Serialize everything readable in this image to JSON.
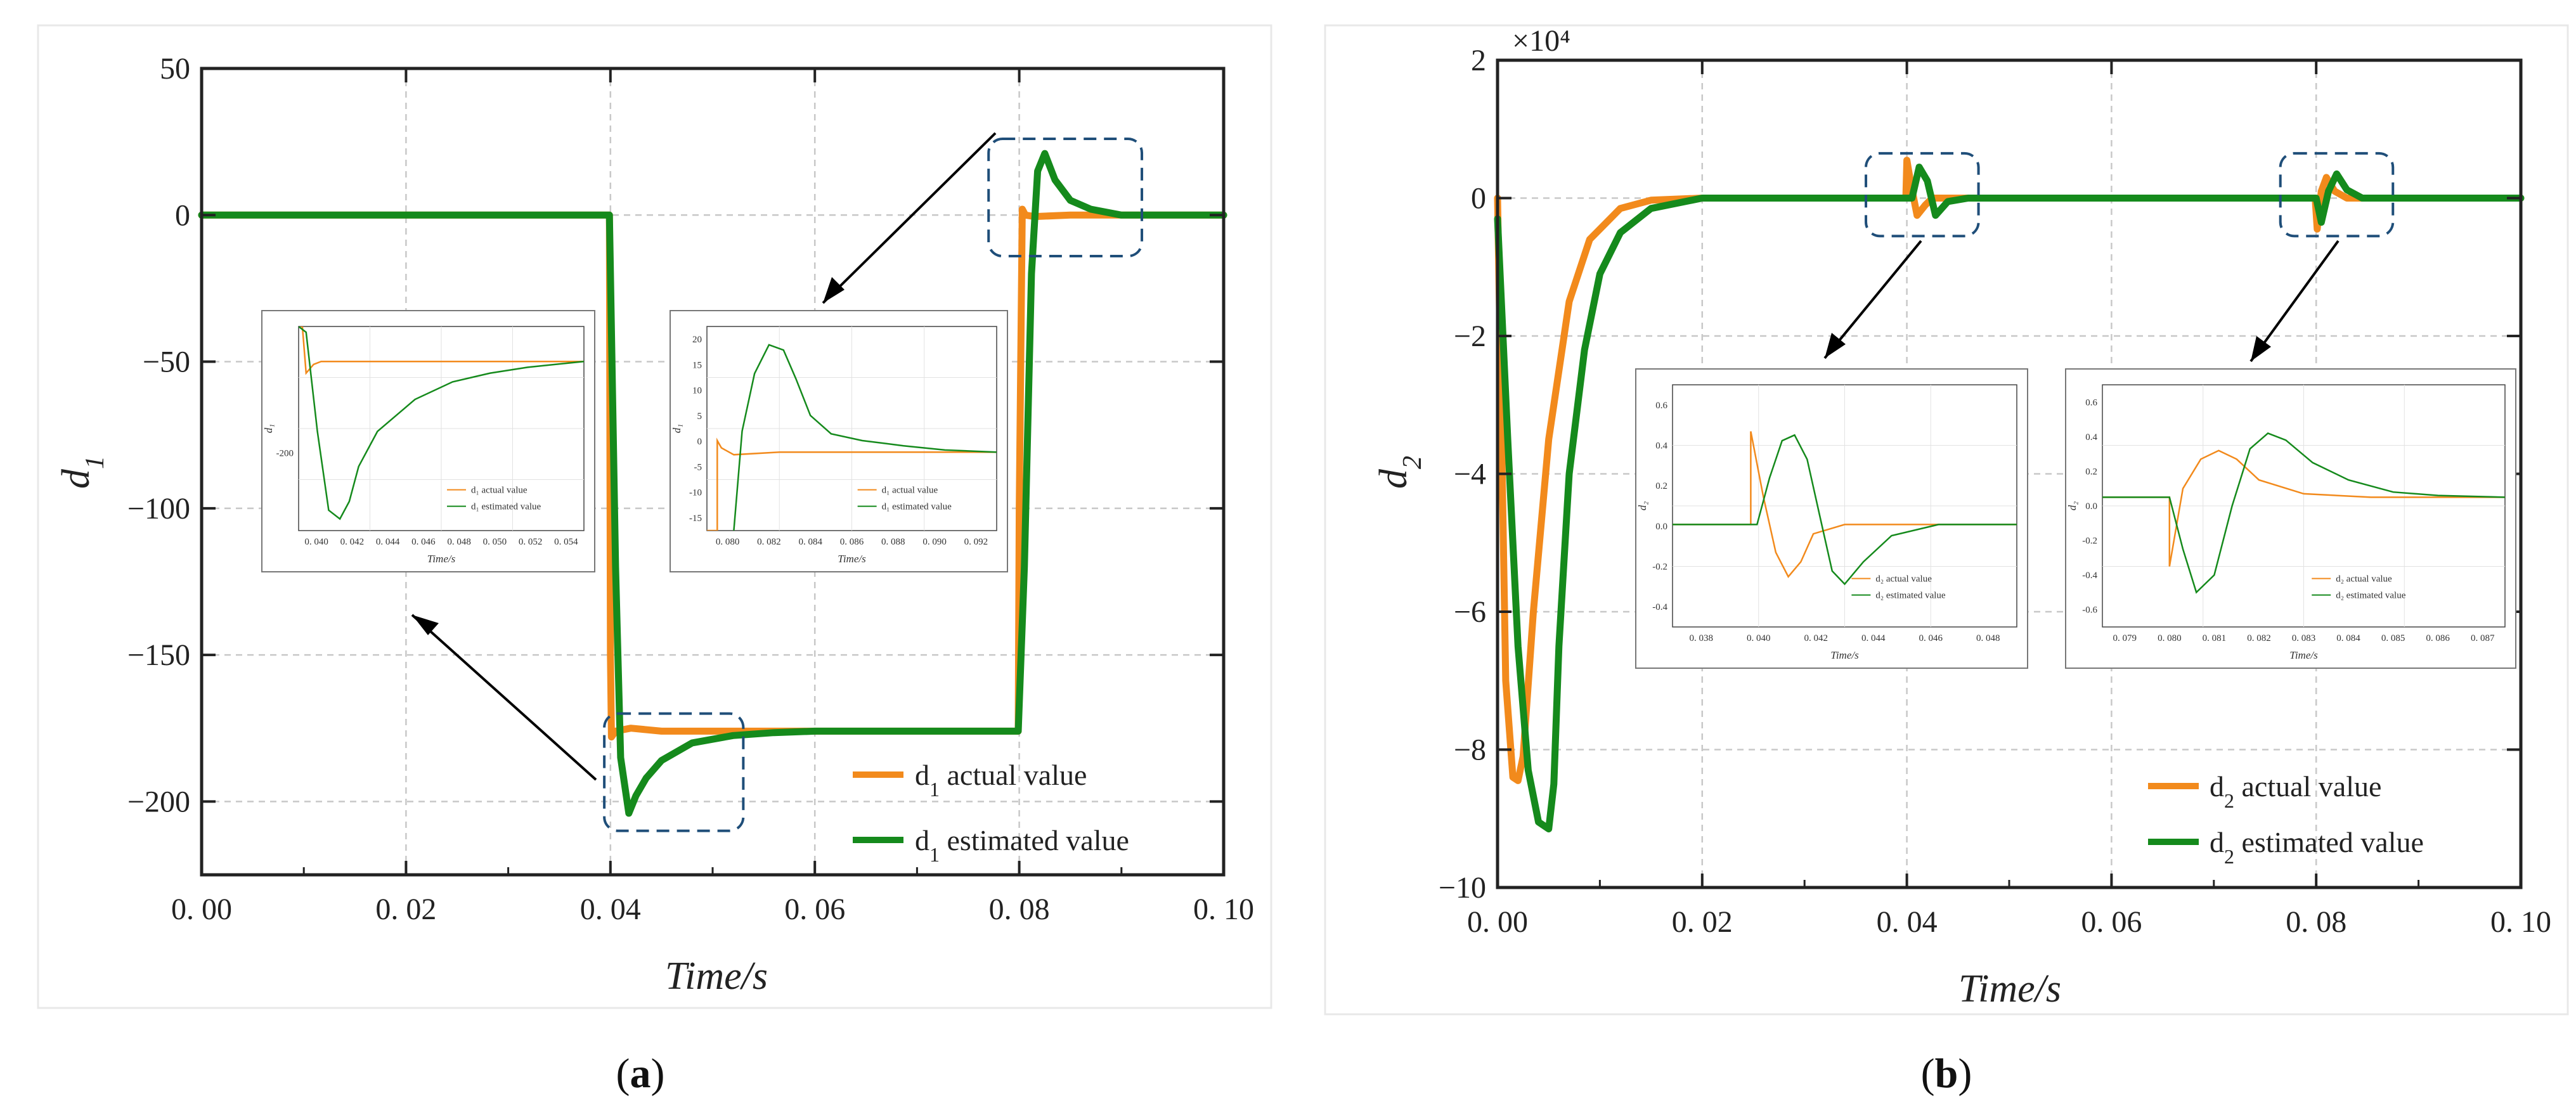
{
  "colors": {
    "actual": "#f28a1c",
    "estimated": "#158a1c",
    "zoom_box": "#1f4e79",
    "frame": "#222222",
    "grid": "#c8c8c8"
  },
  "chart_data": [
    {
      "id": "a",
      "type": "line",
      "caption_open": "(",
      "caption_letter": "a",
      "caption_close": ")",
      "ylabel_main": "d",
      "ylabel_sub": "1",
      "xlabel": "Time/s",
      "xlim": [
        0,
        0.1
      ],
      "ylim": [
        -225,
        50
      ],
      "xticks": [
        0,
        0.02,
        0.04,
        0.06,
        0.08,
        0.1
      ],
      "xtick_labels": [
        "0. 00",
        "0. 02",
        "0. 04",
        "0. 06",
        "0. 08",
        "0. 10"
      ],
      "yticks": [
        50,
        0,
        -50,
        -100,
        -150,
        -200
      ],
      "ytick_labels": [
        "50",
        "0",
        "−50",
        "−100",
        "−150",
        "−200"
      ],
      "legend": [
        {
          "main": "d",
          "sub": "1",
          "rest": " actual value"
        },
        {
          "main": "d",
          "sub": "1",
          "rest": " estimated value"
        }
      ],
      "series": [
        {
          "name": "d1 actual value",
          "x": [
            0,
            0.0399,
            0.04,
            0.0401,
            0.0405,
            0.042,
            0.045,
            0.05,
            0.06,
            0.07,
            0.0799,
            0.08,
            0.0803,
            0.0806,
            0.0815,
            0.085,
            0.09,
            0.1
          ],
          "y": [
            0,
            0,
            -150,
            -178,
            -176,
            -175,
            -176,
            -176,
            -176,
            -176,
            -176,
            -100,
            2,
            0,
            -0.5,
            0,
            0,
            0
          ]
        },
        {
          "name": "d1 estimated value",
          "x": [
            0,
            0.0399,
            0.0405,
            0.041,
            0.0418,
            0.0425,
            0.0435,
            0.045,
            0.048,
            0.052,
            0.056,
            0.06,
            0.07,
            0.0799,
            0.0805,
            0.0812,
            0.0818,
            0.0825,
            0.0835,
            0.085,
            0.087,
            0.09,
            0.1
          ],
          "y": [
            0,
            0,
            -120,
            -185,
            -204,
            -198,
            -192,
            -186,
            -180,
            -177.5,
            -176.5,
            -176,
            -176,
            -176,
            -120,
            -20,
            15,
            21,
            12,
            5,
            2,
            0,
            0
          ]
        }
      ],
      "zoom_boxes": [
        {
          "x0": 0.0394,
          "x1": 0.053,
          "y0": -210,
          "y1": -170
        },
        {
          "x0": 0.077,
          "x1": 0.092,
          "y0": -14,
          "y1": 26
        }
      ],
      "insets": [
        {
          "ylabel": "d₁",
          "xlabel": "Time/s",
          "ytick_labels": [
            "-200"
          ],
          "xtick_labels": [
            "0. 040",
            "0. 042",
            "0. 044",
            "0. 046",
            "0. 048",
            "0. 050",
            "0. 052",
            "0. 054"
          ],
          "legend": [
            "d₁ actual value",
            "d₁ estimated value"
          ],
          "xlim": [
            0.0398,
            0.055
          ],
          "ylim": [
            -207,
            -172
          ],
          "series": [
            {
              "name": "actual",
              "x": [
                0.0398,
                0.04,
                0.0402,
                0.0406,
                0.041,
                0.042,
                0.045,
                0.05,
                0.055
              ],
              "y": [
                -172,
                -172,
                -180,
                -178.5,
                -178,
                -178,
                -178,
                -178,
                -178
              ]
            },
            {
              "name": "estimated",
              "x": [
                0.0398,
                0.0402,
                0.0408,
                0.0414,
                0.042,
                0.0425,
                0.043,
                0.044,
                0.046,
                0.048,
                0.05,
                0.052,
                0.055
              ],
              "y": [
                -172,
                -173,
                -190,
                -203.5,
                -205,
                -202,
                -196,
                -190,
                -184.5,
                -181.5,
                -180,
                -179,
                -178
              ]
            }
          ]
        },
        {
          "ylabel": "d₁",
          "xlabel": "Time/s",
          "ytick_labels": [
            "20",
            "15",
            "10",
            "5",
            "0",
            "-5",
            "-10",
            "-15"
          ],
          "xtick_labels": [
            "0. 080",
            "0. 082",
            "0. 084",
            "0. 086",
            "0. 088",
            "0. 090",
            "0. 092"
          ],
          "legend": [
            "d₁ actual value",
            "d₁ estimated value"
          ],
          "xlim": [
            0.0795,
            0.0935
          ],
          "ylim": [
            -15,
            24
          ],
          "series": [
            {
              "name": "actual",
              "x": [
                0.0795,
                0.08,
                0.08,
                0.0802,
                0.0808,
                0.083,
                0.0935
              ],
              "y": [
                -15,
                -15,
                2.2,
                0.8,
                -0.5,
                0,
                0
              ]
            },
            {
              "name": "estimated",
              "x": [
                0.0808,
                0.0812,
                0.0818,
                0.0825,
                0.0832,
                0.0838,
                0.0845,
                0.0855,
                0.087,
                0.089,
                0.091,
                0.0935
              ],
              "y": [
                -15,
                4,
                15,
                20.5,
                19.5,
                14,
                7,
                3.5,
                2.2,
                1.2,
                0.4,
                0
              ]
            }
          ]
        }
      ]
    },
    {
      "id": "b",
      "type": "line",
      "caption_open": "(",
      "caption_letter": "b",
      "caption_close": ")",
      "ylabel_main": "d",
      "ylabel_sub": "2",
      "xlabel": "Time/s",
      "scale_label": "×10⁴",
      "xlim": [
        0,
        0.1
      ],
      "ylim": [
        -10,
        2
      ],
      "xticks": [
        0,
        0.02,
        0.04,
        0.06,
        0.08,
        0.1
      ],
      "xtick_labels": [
        "0. 00",
        "0. 02",
        "0. 04",
        "0. 06",
        "0. 08",
        "0. 10"
      ],
      "yticks": [
        2,
        0,
        -2,
        -4,
        -6,
        -8,
        -10
      ],
      "ytick_labels": [
        "2",
        "0",
        "−2",
        "−4",
        "−6",
        "−8",
        "−10"
      ],
      "legend": [
        {
          "main": "d",
          "sub": "2",
          "rest": " actual value"
        },
        {
          "main": "d",
          "sub": "2",
          "rest": " estimated value"
        }
      ],
      "series": [
        {
          "name": "d2 actual value",
          "x": [
            0,
            0.0008,
            0.0015,
            0.002,
            0.0025,
            0.0035,
            0.005,
            0.007,
            0.009,
            0.012,
            0.015,
            0.02,
            0.0399,
            0.04,
            0.0404,
            0.041,
            0.0418,
            0.0425,
            0.044,
            0.0799,
            0.0801,
            0.0805,
            0.081,
            0.0818,
            0.083,
            0.1
          ],
          "y": [
            0,
            -7,
            -8.4,
            -8.45,
            -8.1,
            -6,
            -3.5,
            -1.5,
            -0.6,
            -0.15,
            -0.03,
            0,
            0,
            0.55,
            0.2,
            -0.25,
            -0.1,
            0,
            0,
            0,
            -0.45,
            0.1,
            0.3,
            0.1,
            0,
            0
          ]
        },
        {
          "name": "d2 estimated value",
          "x": [
            0,
            0.001,
            0.002,
            0.003,
            0.004,
            0.005,
            0.0055,
            0.006,
            0.007,
            0.0085,
            0.01,
            0.012,
            0.015,
            0.02,
            0.04,
            0.0405,
            0.0412,
            0.042,
            0.0428,
            0.044,
            0.046,
            0.08,
            0.0805,
            0.0812,
            0.082,
            0.083,
            0.0845,
            0.1
          ],
          "y": [
            -0.3,
            -3.5,
            -6.5,
            -8.3,
            -9.05,
            -9.15,
            -8.5,
            -6.5,
            -4,
            -2.2,
            -1.1,
            -0.5,
            -0.15,
            0,
            0,
            0,
            0.45,
            0.25,
            -0.25,
            -0.05,
            0,
            0,
            -0.35,
            0.1,
            0.35,
            0.12,
            0,
            0
          ]
        }
      ],
      "zoom_boxes": [
        {
          "x0": 0.036,
          "x1": 0.047,
          "y0": -0.55,
          "y1": 0.65
        },
        {
          "x0": 0.0765,
          "x1": 0.0875,
          "y0": -0.55,
          "y1": 0.65
        }
      ],
      "insets": [
        {
          "ylabel": "d₂",
          "xlabel": "Time/s",
          "ytick_labels": [
            "0.6",
            "0.4",
            "0.2",
            "0.0",
            "-0.2",
            "-0.4"
          ],
          "xtick_labels": [
            "0. 038",
            "0. 040",
            "0. 042",
            "0. 044",
            "0. 046",
            "0. 048"
          ],
          "legend": [
            "d₂ actual value",
            "d₂ estimated value"
          ],
          "xlim": [
            0.0375,
            0.0485
          ],
          "ylim": [
            -0.55,
            0.75
          ],
          "series": [
            {
              "name": "actual",
              "x": [
                0.0375,
                0.04,
                0.04,
                0.0404,
                0.0408,
                0.0412,
                0.0416,
                0.042,
                0.043,
                0.0485
              ],
              "y": [
                0,
                0,
                0.5,
                0.15,
                -0.15,
                -0.28,
                -0.2,
                -0.05,
                0,
                0
              ]
            },
            {
              "name": "estimated",
              "x": [
                0.0375,
                0.0402,
                0.0406,
                0.041,
                0.0414,
                0.0418,
                0.0422,
                0.0426,
                0.043,
                0.0436,
                0.0445,
                0.046,
                0.0485
              ],
              "y": [
                0,
                0,
                0.25,
                0.45,
                0.48,
                0.35,
                0.05,
                -0.25,
                -0.32,
                -0.2,
                -0.06,
                0,
                0
              ]
            }
          ]
        },
        {
          "ylabel": "d₂",
          "xlabel": "Time/s",
          "ytick_labels": [
            "0.6",
            "0.4",
            "0.2",
            "0.0",
            "-0.2",
            "-0.4",
            "-0.6"
          ],
          "xtick_labels": [
            "0. 079",
            "0. 080",
            "0. 081",
            "0. 082",
            "0. 083",
            "0. 084",
            "0. 085",
            "0. 086",
            "0. 087"
          ],
          "legend": [
            "d₂ actual value",
            "d₂ estimated value"
          ],
          "xlim": [
            0.0785,
            0.0875
          ],
          "ylim": [
            -0.75,
            0.65
          ],
          "series": [
            {
              "name": "actual",
              "x": [
                0.0785,
                0.08,
                0.08,
                0.0803,
                0.0807,
                0.0811,
                0.0815,
                0.082,
                0.083,
                0.0845,
                0.0875
              ],
              "y": [
                0,
                0,
                -0.4,
                0.05,
                0.22,
                0.27,
                0.22,
                0.1,
                0.02,
                0,
                0
              ]
            },
            {
              "name": "estimated",
              "x": [
                0.0785,
                0.08,
                0.0803,
                0.0806,
                0.081,
                0.0814,
                0.0818,
                0.0822,
                0.0826,
                0.0832,
                0.084,
                0.085,
                0.086,
                0.0875
              ],
              "y": [
                0,
                0,
                -0.3,
                -0.55,
                -0.45,
                -0.05,
                0.28,
                0.37,
                0.33,
                0.2,
                0.1,
                0.03,
                0.01,
                0
              ]
            }
          ]
        }
      ]
    }
  ]
}
